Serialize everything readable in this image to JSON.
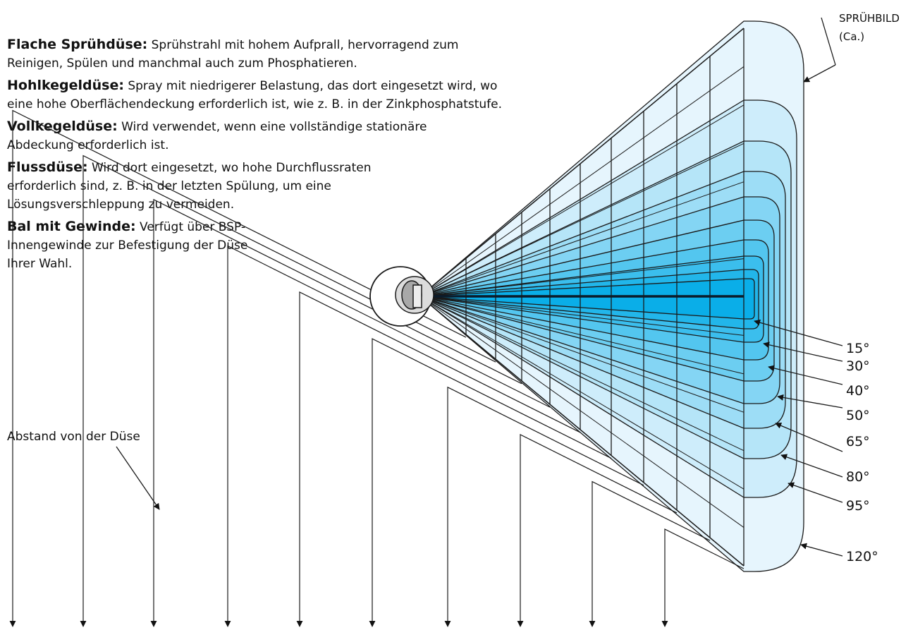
{
  "nozzle_types": [
    {
      "term": "Flache Sprühdüse:",
      "text": " Sprühstrahl mit hohem Aufprall, hervorragend zum Reinigen, Spülen und manchmal auch zum Phosphatieren.",
      "width": 700
    },
    {
      "term": "Hohlkegeldüse:",
      "text": " Spray mit niedrigerer Belastung, das dort eingesetzt wird, wo eine hohe Oberflächendeckung erforderlich ist, wie z. B. in der Zinkphosphatstufe.",
      "width": 735
    },
    {
      "term": "Vollkegeldüse:",
      "text": " Wird verwendet, wenn eine vollständige stationäre Abdeckung erforderlich ist.",
      "width": 620
    },
    {
      "term": "Flussdüse:",
      "text": " Wird dort eingesetzt, wo hohe Durchflussraten erforderlich sind, z. B. in der letzten Spülung, um eine Lösungsverschleppung zu vermeiden.",
      "width": 520
    },
    {
      "term": "Bal mit Gewinde:",
      "text": " Verfügt über BSP-Innengewinde zur Befestigung der Düse Ihrer Wahl.",
      "width": 385
    }
  ],
  "spray_pattern_label": [
    "SPRÜHBILD",
    "(Ca.)"
  ],
  "distance_label": "Abstand von der Düse",
  "angles": [
    "15°",
    "30°",
    "40°",
    "50°",
    "65°",
    "80°",
    "95°",
    "120°"
  ],
  "colors": {
    "band_light": "#e6f5fd",
    "band_dark": "#0aaee8",
    "outline": "#1a1a1a"
  }
}
